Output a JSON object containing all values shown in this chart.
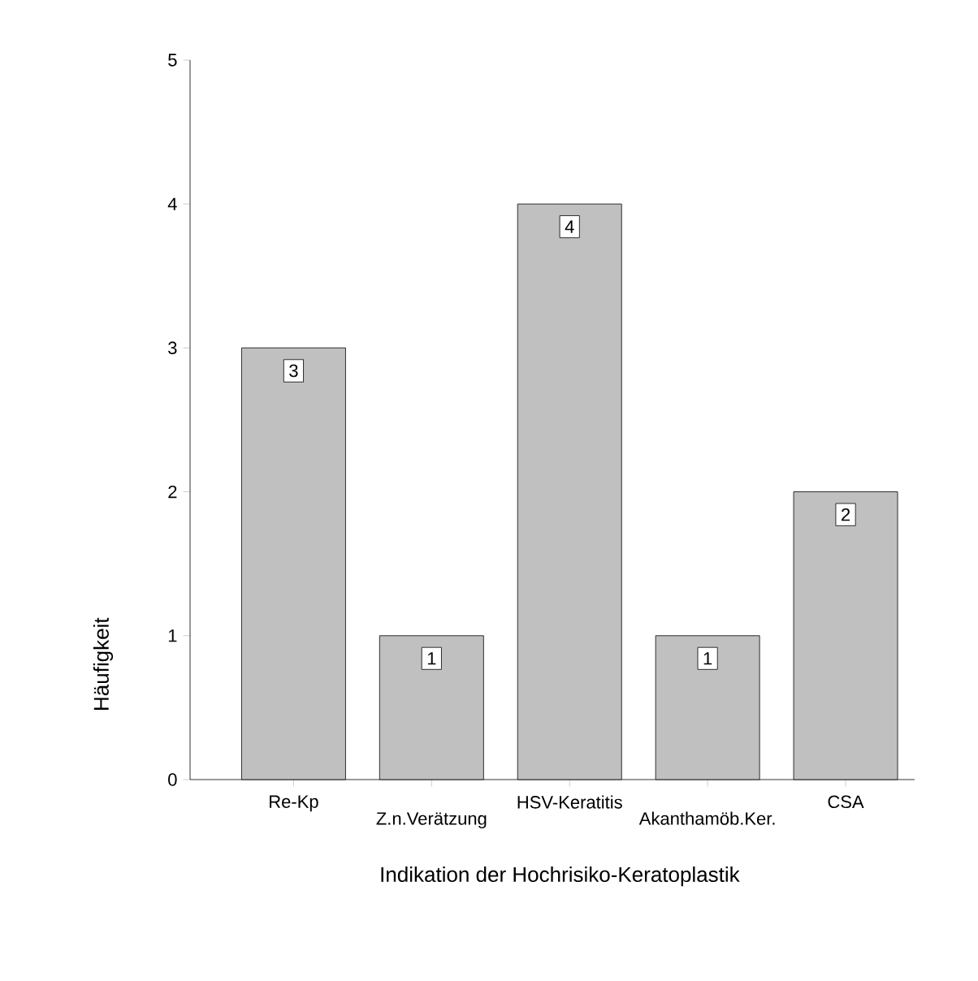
{
  "chart_data": {
    "type": "bar",
    "xlabel": "Indikation der Hochrisiko-Keratoplastik",
    "ylabel": "Häufigkeit",
    "categories": [
      "Re-Kp",
      "Z.n.Verätzung",
      "HSV-Keratitis",
      "Akanthamöb.Ker.",
      "CSA"
    ],
    "values": [
      3,
      1,
      4,
      1,
      2
    ],
    "color": "#c0c0c0",
    "ylim": [
      0,
      5
    ],
    "yticks": [
      0,
      1,
      2,
      3,
      4,
      5
    ],
    "grid": false,
    "data_labels": true
  }
}
